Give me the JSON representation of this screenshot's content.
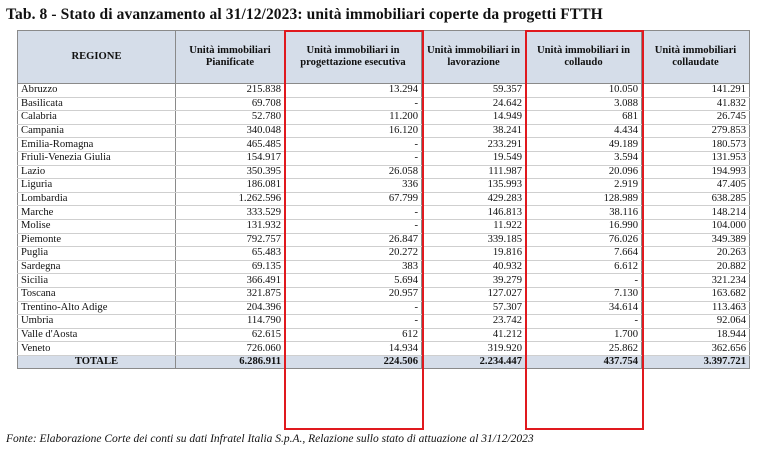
{
  "title": "Tab. 8 - Stato di avanzamento al 31/12/2023: unità immobiliari coperte da progetti FTTH",
  "headers": [
    "REGIONE",
    "Unità immobiliari Pianificate",
    "Unità immobiliari in progettazione esecutiva",
    "Unità immobiliari in lavorazione",
    "Unità immobiliari in collaudo",
    "Unità immobiliari collaudate"
  ],
  "rows": [
    {
      "region": "Abruzzo",
      "values": [
        "215.838",
        "13.294",
        "59.357",
        "10.050",
        "141.291"
      ]
    },
    {
      "region": "Basilicata",
      "values": [
        "69.708",
        "-",
        "24.642",
        "3.088",
        "41.832"
      ]
    },
    {
      "region": "Calabria",
      "values": [
        "52.780",
        "11.200",
        "14.949",
        "681",
        "26.745"
      ]
    },
    {
      "region": "Campania",
      "values": [
        "340.048",
        "16.120",
        "38.241",
        "4.434",
        "279.853"
      ]
    },
    {
      "region": "Emilia-Romagna",
      "values": [
        "465.485",
        "-",
        "233.291",
        "49.189",
        "180.573"
      ]
    },
    {
      "region": "Friuli-Venezia Giulia",
      "values": [
        "154.917",
        "-",
        "19.549",
        "3.594",
        "131.953"
      ]
    },
    {
      "region": "Lazio",
      "values": [
        "350.395",
        "26.058",
        "111.987",
        "20.096",
        "194.993"
      ]
    },
    {
      "region": "Liguria",
      "values": [
        "186.081",
        "336",
        "135.993",
        "2.919",
        "47.405"
      ]
    },
    {
      "region": "Lombardia",
      "values": [
        "1.262.596",
        "67.799",
        "429.283",
        "128.989",
        "638.285"
      ]
    },
    {
      "region": "Marche",
      "values": [
        "333.529",
        "-",
        "146.813",
        "38.116",
        "148.214"
      ]
    },
    {
      "region": "Molise",
      "values": [
        "131.932",
        "-",
        "11.922",
        "16.990",
        "104.000"
      ]
    },
    {
      "region": "Piemonte",
      "values": [
        "792.757",
        "26.847",
        "339.185",
        "76.026",
        "349.389"
      ]
    },
    {
      "region": "Puglia",
      "values": [
        "65.483",
        "20.272",
        "19.816",
        "7.664",
        "20.263"
      ]
    },
    {
      "region": "Sardegna",
      "values": [
        "69.135",
        "383",
        "40.932",
        "6.612",
        "20.882"
      ]
    },
    {
      "region": "Sicilia",
      "values": [
        "366.491",
        "5.694",
        "39.279",
        "-",
        "321.234"
      ]
    },
    {
      "region": "Toscana",
      "values": [
        "321.875",
        "20.957",
        "127.027",
        "7.130",
        "163.682"
      ]
    },
    {
      "region": "Trentino-Alto Adige",
      "values": [
        "204.396",
        "-",
        "57.307",
        "34.614",
        "113.463"
      ]
    },
    {
      "region": "Umbria",
      "values": [
        "114.790",
        "-",
        "23.742",
        "-",
        "92.064"
      ]
    },
    {
      "region": "Valle d'Aosta",
      "values": [
        "62.615",
        "612",
        "41.212",
        "1.700",
        "18.944"
      ]
    },
    {
      "region": "Veneto",
      "values": [
        "726.060",
        "14.934",
        "319.920",
        "25.862",
        "362.656"
      ]
    }
  ],
  "total": {
    "label": "TOTALE",
    "values": [
      "6.286.911",
      "224.506",
      "2.234.447",
      "437.754",
      "3.397.721"
    ]
  },
  "source": "Fonte: Elaborazione Corte dei conti su dati Infratel Italia S.p.A., Relazione sullo stato di attuazione al 31/12/2023",
  "colors": {
    "header_bg": "#d5dde9",
    "highlight_border": "#e0191e"
  }
}
